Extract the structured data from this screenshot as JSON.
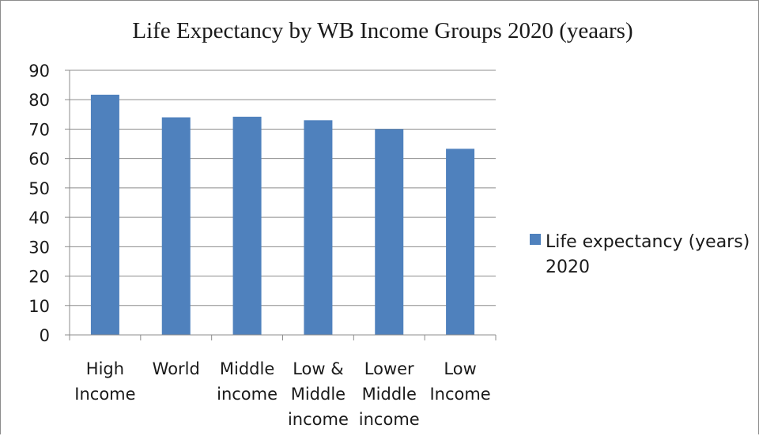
{
  "chart_data": {
    "type": "bar",
    "title": "Life Expectancy by WB Income Groups 2020 (yeaars)",
    "xlabel": "",
    "ylabel": "",
    "categories": [
      [
        "High",
        "Income"
      ],
      [
        "World"
      ],
      [
        "Middle",
        "income"
      ],
      [
        "Low &",
        "Middle",
        "income"
      ],
      [
        "Lower",
        "Middle",
        "income"
      ],
      [
        "Low",
        "Income"
      ]
    ],
    "series": [
      {
        "name": "Life expectancy (years) 2020",
        "values": [
          81.7,
          74.0,
          74.2,
          73.0,
          70.0,
          63.3
        ],
        "color": "#4f81bd"
      }
    ],
    "ylim": [
      0,
      90
    ],
    "yticks": [
      0,
      10,
      20,
      30,
      40,
      50,
      60,
      70,
      80,
      90
    ],
    "grid": true,
    "legend_position": "right"
  }
}
